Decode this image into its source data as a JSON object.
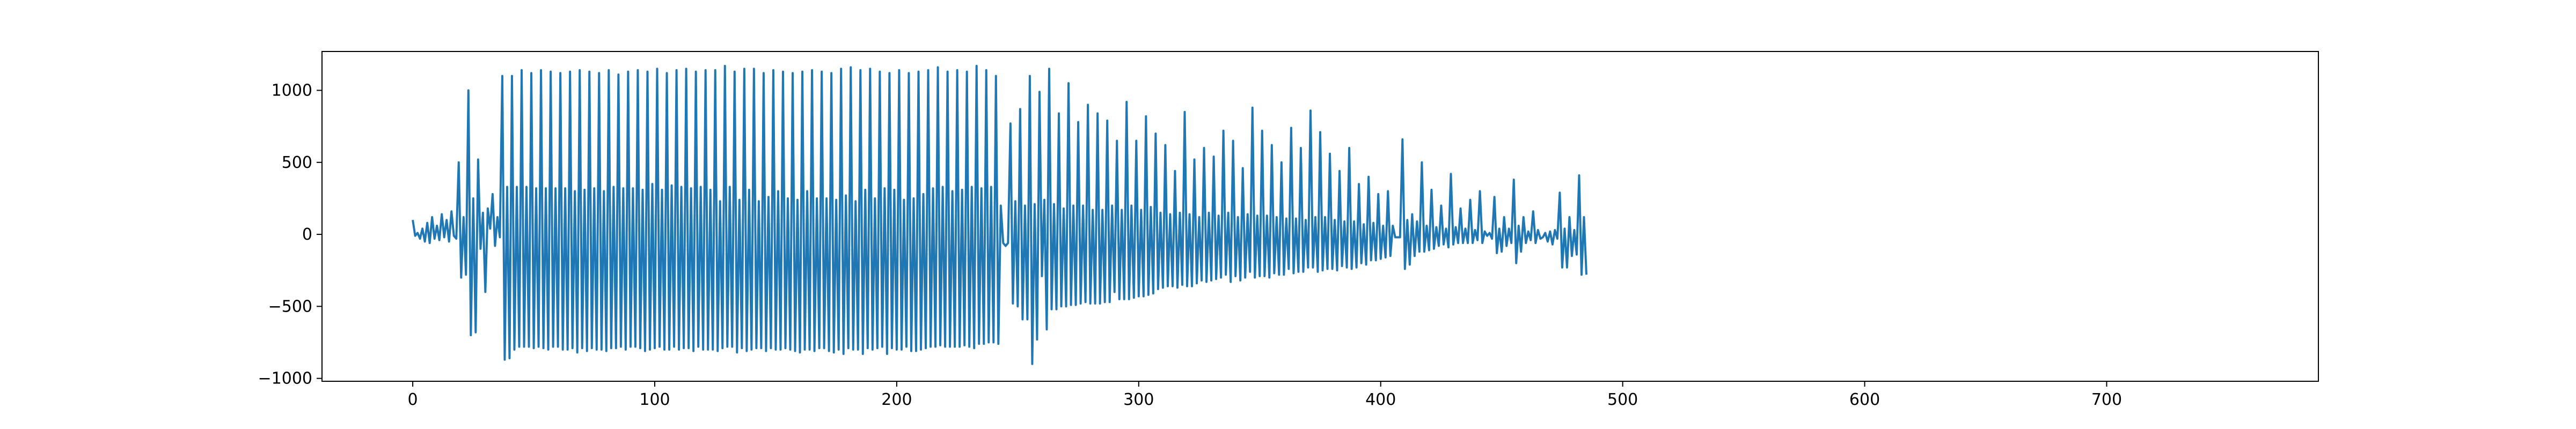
{
  "chart_data": {
    "type": "line",
    "title": "",
    "xlabel": "",
    "ylabel": "",
    "xlim": [
      -37.5,
      787.5
    ],
    "ylim": [
      -1020,
      1270
    ],
    "x_ticks": [
      0,
      100,
      200,
      300,
      400,
      500,
      600,
      700
    ],
    "y_ticks": [
      -1000,
      -500,
      0,
      500,
      1000
    ],
    "x_tick_labels": [
      "0",
      "100",
      "200",
      "300",
      "400",
      "500",
      "600",
      "700"
    ],
    "y_tick_labels": [
      "−1000",
      "−500",
      "0",
      "500",
      "1000"
    ],
    "grid": false,
    "legend": "none",
    "color": "#1f77b4",
    "series": [
      {
        "x_start": 0,
        "x_step": 1,
        "values": [
          100,
          -10,
          10,
          -30,
          40,
          -50,
          80,
          -60,
          120,
          -30,
          60,
          -40,
          140,
          -20,
          100,
          -50,
          160,
          -10,
          -30,
          500,
          -300,
          120,
          -280,
          1000,
          -700,
          250,
          -680,
          520,
          -100,
          150,
          -400,
          180,
          40,
          280,
          -80,
          120,
          -20,
          1100,
          -870,
          330,
          -860,
          1100,
          -800,
          330,
          -780,
          1140,
          -780,
          330,
          -780,
          1120,
          -790,
          320,
          -780,
          1140,
          -790,
          320,
          -800,
          1130,
          -780,
          320,
          -780,
          1120,
          -800,
          320,
          -800,
          1130,
          -790,
          300,
          -820,
          1140,
          -790,
          310,
          -810,
          1130,
          -790,
          320,
          -800,
          1120,
          -800,
          300,
          -810,
          1140,
          -790,
          330,
          -790,
          1110,
          -780,
          320,
          -800,
          1130,
          -780,
          320,
          -780,
          1140,
          -790,
          310,
          -810,
          1130,
          -800,
          350,
          -790,
          1150,
          -780,
          310,
          -800,
          1120,
          -800,
          340,
          -780,
          1140,
          -800,
          330,
          -790,
          1150,
          -790,
          320,
          -810,
          1130,
          -780,
          330,
          -800,
          1140,
          -800,
          310,
          -800,
          1140,
          -810,
          230,
          -790,
          1170,
          -780,
          330,
          -780,
          1130,
          -820,
          240,
          -790,
          1150,
          -810,
          310,
          -800,
          1150,
          -790,
          230,
          -790,
          1120,
          -810,
          260,
          -790,
          1140,
          -800,
          300,
          -800,
          1130,
          -790,
          250,
          -800,
          1120,
          -810,
          240,
          -820,
          1130,
          -800,
          300,
          -800,
          1140,
          -810,
          250,
          -790,
          1130,
          -790,
          250,
          -810,
          1120,
          -820,
          240,
          -800,
          1150,
          -830,
          270,
          -790,
          1160,
          -800,
          230,
          -800,
          1140,
          -830,
          310,
          -790,
          1150,
          -800,
          250,
          -790,
          1130,
          -780,
          320,
          -830,
          1120,
          -790,
          310,
          -800,
          1140,
          -800,
          240,
          -780,
          1120,
          -810,
          250,
          -810,
          1130,
          -800,
          280,
          -790,
          1140,
          -780,
          320,
          -780,
          1160,
          -770,
          330,
          -780,
          1130,
          -780,
          300,
          -780,
          1140,
          -780,
          310,
          -770,
          1130,
          -780,
          330,
          -790,
          1170,
          -760,
          320,
          -760,
          1140,
          -750,
          330,
          -750,
          1100,
          -760,
          200,
          -60,
          -80,
          -60,
          770,
          -480,
          230,
          -500,
          870,
          -590,
          200,
          -590,
          1100,
          -900,
          210,
          -730,
          990,
          -290,
          240,
          -660,
          1150,
          -520,
          210,
          -520,
          840,
          -500,
          180,
          -500,
          1050,
          -490,
          200,
          -490,
          780,
          -480,
          200,
          -470,
          900,
          -480,
          170,
          -480,
          840,
          -480,
          170,
          -470,
          790,
          -470,
          200,
          -400,
          650,
          -450,
          170,
          -450,
          920,
          -450,
          200,
          -440,
          650,
          -430,
          170,
          -430,
          820,
          -420,
          190,
          -410,
          700,
          -380,
          150,
          -370,
          620,
          -360,
          140,
          -360,
          440,
          -370,
          150,
          -350,
          850,
          -360,
          140,
          -360,
          520,
          -340,
          120,
          -320,
          600,
          -330,
          150,
          -320,
          540,
          -310,
          130,
          -300,
          720,
          -280,
          150,
          -330,
          650,
          -290,
          120,
          -320,
          460,
          -300,
          140,
          -260,
          880,
          -300,
          130,
          -290,
          720,
          -290,
          130,
          -300,
          620,
          -270,
          120,
          -280,
          500,
          -280,
          110,
          -240,
          740,
          -270,
          110,
          -260,
          600,
          -260,
          100,
          -230,
          860,
          -230,
          120,
          -260,
          710,
          -250,
          120,
          -240,
          560,
          -240,
          100,
          -250,
          440,
          -220,
          90,
          -230,
          600,
          -240,
          90,
          -230,
          350,
          -200,
          70,
          -210,
          400,
          -180,
          80,
          -180,
          280,
          -170,
          60,
          -160,
          300,
          -150,
          60,
          -20,
          -20,
          -20,
          660,
          -240,
          100,
          -210,
          140,
          -150,
          90,
          -120,
          500,
          -120,
          60,
          -110,
          310,
          -100,
          50,
          -80,
          200,
          -70,
          40,
          -90,
          420,
          -70,
          50,
          -60,
          180,
          -60,
          40,
          -60,
          240,
          -60,
          30,
          -40,
          300,
          -60,
          20,
          -10,
          10,
          -30,
          260,
          -130,
          40,
          -120,
          120,
          -80,
          40,
          -60,
          380,
          -200,
          60,
          -120,
          120,
          -60,
          20,
          -40,
          160,
          -60,
          30,
          -30,
          -20,
          10,
          -50,
          20,
          -70,
          30,
          -30,
          290,
          -230,
          40,
          -230,
          120,
          -150,
          30,
          -140,
          410,
          -280,
          120,
          -280
        ]
      }
    ]
  }
}
